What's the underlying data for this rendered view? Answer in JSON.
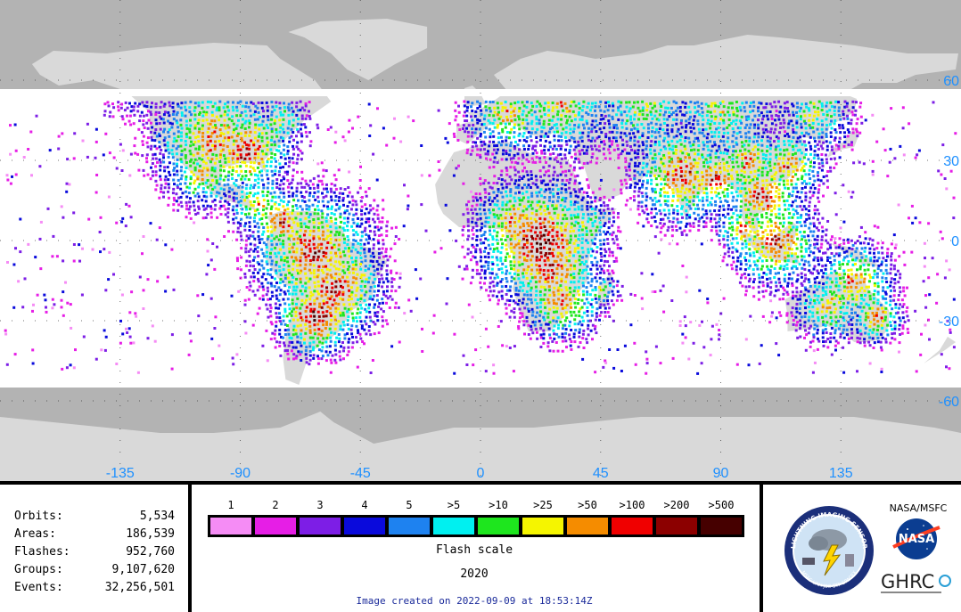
{
  "map": {
    "lat_labels": [
      "60",
      "30",
      "0",
      "-30",
      "-60"
    ],
    "lat_values": [
      60,
      30,
      0,
      -30,
      -60
    ],
    "lon_labels": [
      "-135",
      "-90",
      "-45",
      "0",
      "45",
      "90",
      "135"
    ],
    "lon_values": [
      -135,
      -90,
      -45,
      0,
      45,
      90,
      135
    ],
    "coverage_lat": [
      -54,
      54
    ],
    "label_color": "#1e90ff",
    "land_color": "#d9d9d9",
    "ocean_outside_color": "#b3b3b3",
    "coverage_bg_color": "#ffffff"
  },
  "stats": [
    {
      "label": "Orbits:",
      "value": "5,534"
    },
    {
      "label": "Areas:",
      "value": "186,539"
    },
    {
      "label": "Flashes:",
      "value": "952,760"
    },
    {
      "label": "Groups:",
      "value": "9,107,620"
    },
    {
      "label": "Events:",
      "value": "32,256,501"
    }
  ],
  "legend": {
    "items": [
      {
        "label": "1",
        "color": "#f58cf5"
      },
      {
        "label": "2",
        "color": "#e61ee6"
      },
      {
        "label": "3",
        "color": "#7d1ee6"
      },
      {
        "label": "4",
        "color": "#0a0adc"
      },
      {
        "label": "5",
        "color": "#1e82f0"
      },
      {
        "label": ">5",
        "color": "#00f0f0"
      },
      {
        "label": ">10",
        "color": "#1ee61e"
      },
      {
        "label": ">25",
        "color": "#f5f500"
      },
      {
        "label": ">50",
        "color": "#f58c00"
      },
      {
        "label": ">100",
        "color": "#f00000"
      },
      {
        "label": ">200",
        "color": "#8c0000"
      },
      {
        "label": ">500",
        "color": "#460000"
      }
    ],
    "caption": "Flash scale",
    "year": "2020"
  },
  "created": "Image created on 2022-09-09 at 18:53:14Z",
  "logos": {
    "nasa_msfc": "NASA/MSFC",
    "nasa": "NASA",
    "ghrc": "GHRC",
    "lis_ring": "LIGHTNING IMAGING SENSOR",
    "lis_bottom": "MSFC UAH JSC STP SPACEX"
  }
}
